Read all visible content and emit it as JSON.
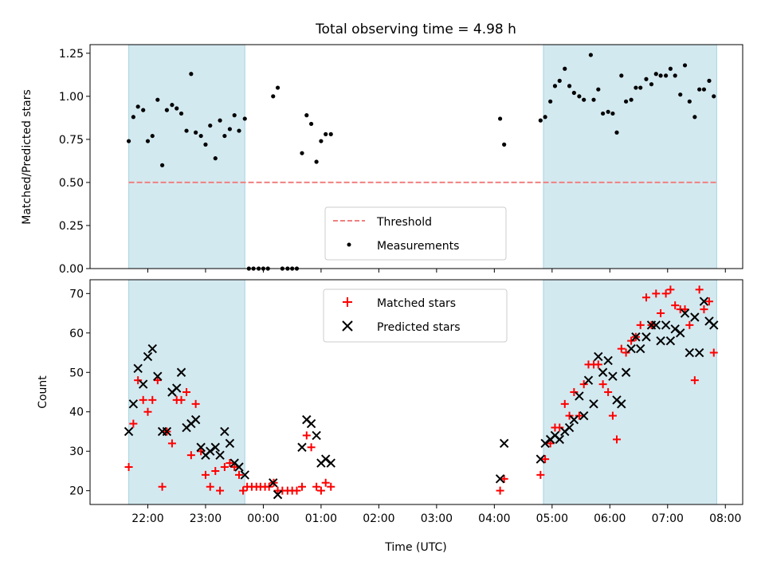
{
  "chart_data": [
    {
      "type": "scatter",
      "title": "Total observing time = 4.98 h",
      "xlabel": "",
      "ylabel": "Matched/Predicted stars",
      "x_unit": "hours (UTC), values beyond 24 continue past midnight",
      "xlim": [
        21.0,
        32.3
      ],
      "ylim": [
        0.0,
        1.3
      ],
      "y_ticks": [
        "0.00",
        "0.25",
        "0.50",
        "0.75",
        "1.00",
        "1.25"
      ],
      "legend_position": "lower-center",
      "shaded_intervals": [
        [
          21.67,
          23.68
        ],
        [
          28.85,
          31.85
        ]
      ],
      "shade_color": "#d3e9f0",
      "threshold": {
        "name": "Threshold",
        "value": 0.5,
        "x_range": [
          21.67,
          31.85
        ],
        "color": "#f08080",
        "style": "dashed"
      },
      "series": [
        {
          "name": "Measurements",
          "marker": "dot",
          "color": "#000000",
          "points": [
            [
              21.67,
              0.74
            ],
            [
              21.75,
              0.88
            ],
            [
              21.83,
              0.94
            ],
            [
              21.92,
              0.92
            ],
            [
              22.0,
              0.74
            ],
            [
              22.08,
              0.77
            ],
            [
              22.17,
              0.98
            ],
            [
              22.25,
              0.6
            ],
            [
              22.33,
              0.92
            ],
            [
              22.42,
              0.95
            ],
            [
              22.5,
              0.93
            ],
            [
              22.58,
              0.9
            ],
            [
              22.67,
              0.8
            ],
            [
              22.75,
              1.13
            ],
            [
              22.83,
              0.79
            ],
            [
              22.92,
              0.77
            ],
            [
              23.0,
              0.72
            ],
            [
              23.08,
              0.83
            ],
            [
              23.17,
              0.64
            ],
            [
              23.25,
              0.86
            ],
            [
              23.33,
              0.77
            ],
            [
              23.42,
              0.81
            ],
            [
              23.5,
              0.89
            ],
            [
              23.58,
              0.8
            ],
            [
              23.68,
              0.87
            ],
            [
              23.75,
              0.0
            ],
            [
              23.83,
              0.0
            ],
            [
              23.92,
              0.0
            ],
            [
              24.0,
              0.0
            ],
            [
              24.08,
              0.0
            ],
            [
              24.17,
              1.0
            ],
            [
              24.25,
              1.05
            ],
            [
              24.33,
              0.0
            ],
            [
              24.42,
              0.0
            ],
            [
              24.5,
              0.0
            ],
            [
              24.58,
              0.0
            ],
            [
              24.67,
              0.67
            ],
            [
              24.75,
              0.89
            ],
            [
              24.83,
              0.84
            ],
            [
              24.92,
              0.62
            ],
            [
              25.0,
              0.74
            ],
            [
              25.08,
              0.78
            ],
            [
              25.17,
              0.78
            ],
            [
              28.1,
              0.87
            ],
            [
              28.17,
              0.72
            ],
            [
              28.8,
              0.86
            ],
            [
              28.88,
              0.88
            ],
            [
              28.97,
              0.97
            ],
            [
              29.05,
              1.06
            ],
            [
              29.13,
              1.09
            ],
            [
              29.22,
              1.16
            ],
            [
              29.3,
              1.06
            ],
            [
              29.38,
              1.02
            ],
            [
              29.47,
              1.0
            ],
            [
              29.55,
              0.98
            ],
            [
              29.67,
              1.24
            ],
            [
              29.72,
              0.98
            ],
            [
              29.8,
              1.04
            ],
            [
              29.88,
              0.9
            ],
            [
              29.97,
              0.91
            ],
            [
              30.05,
              0.9
            ],
            [
              30.12,
              0.79
            ],
            [
              30.2,
              1.12
            ],
            [
              30.28,
              0.97
            ],
            [
              30.37,
              0.98
            ],
            [
              30.45,
              1.05
            ],
            [
              30.53,
              1.05
            ],
            [
              30.63,
              1.1
            ],
            [
              30.72,
              1.07
            ],
            [
              30.8,
              1.13
            ],
            [
              30.88,
              1.12
            ],
            [
              30.97,
              1.12
            ],
            [
              31.05,
              1.16
            ],
            [
              31.13,
              1.12
            ],
            [
              31.22,
              1.01
            ],
            [
              31.3,
              1.18
            ],
            [
              31.38,
              0.97
            ],
            [
              31.47,
              0.88
            ],
            [
              31.55,
              1.04
            ],
            [
              31.63,
              1.04
            ],
            [
              31.72,
              1.09
            ],
            [
              31.8,
              1.0
            ]
          ]
        }
      ]
    },
    {
      "type": "scatter",
      "title": "",
      "xlabel": "Time (UTC)",
      "ylabel": "Count",
      "x_unit": "hours (UTC), values beyond 24 continue past midnight",
      "xlim": [
        21.0,
        32.3
      ],
      "ylim": [
        16.5,
        73.5
      ],
      "x_ticks": [
        {
          "value": 22,
          "label": "22:00"
        },
        {
          "value": 23,
          "label": "23:00"
        },
        {
          "value": 24,
          "label": "00:00"
        },
        {
          "value": 25,
          "label": "01:00"
        },
        {
          "value": 26,
          "label": "02:00"
        },
        {
          "value": 27,
          "label": "03:00"
        },
        {
          "value": 28,
          "label": "04:00"
        },
        {
          "value": 29,
          "label": "05:00"
        },
        {
          "value": 30,
          "label": "06:00"
        },
        {
          "value": 31,
          "label": "07:00"
        },
        {
          "value": 32,
          "label": "08:00"
        }
      ],
      "y_ticks": [
        "20",
        "30",
        "40",
        "50",
        "60",
        "70"
      ],
      "legend_position": "upper-center",
      "shaded_intervals": [
        [
          21.67,
          23.68
        ],
        [
          28.85,
          31.85
        ]
      ],
      "shade_color": "#d3e9f0",
      "series": [
        {
          "name": "Matched stars",
          "marker": "plus",
          "color": "#ff0000",
          "points": [
            [
              21.67,
              26
            ],
            [
              21.75,
              37
            ],
            [
              21.83,
              48
            ],
            [
              21.92,
              43
            ],
            [
              22.0,
              40
            ],
            [
              22.08,
              43
            ],
            [
              22.17,
              48
            ],
            [
              22.25,
              21
            ],
            [
              22.33,
              35
            ],
            [
              22.42,
              32
            ],
            [
              22.5,
              43
            ],
            [
              22.58,
              43
            ],
            [
              22.67,
              45
            ],
            [
              22.75,
              29
            ],
            [
              22.83,
              42
            ],
            [
              22.92,
              30
            ],
            [
              23.0,
              24
            ],
            [
              23.08,
              21
            ],
            [
              23.17,
              25
            ],
            [
              23.25,
              20
            ],
            [
              23.33,
              26
            ],
            [
              23.42,
              27
            ],
            [
              23.5,
              26
            ],
            [
              23.58,
              24
            ],
            [
              23.65,
              20
            ],
            [
              23.72,
              21
            ],
            [
              23.8,
              21
            ],
            [
              23.88,
              21
            ],
            [
              23.95,
              21
            ],
            [
              24.03,
              21
            ],
            [
              24.1,
              21
            ],
            [
              24.18,
              22
            ],
            [
              24.25,
              20
            ],
            [
              24.33,
              20
            ],
            [
              24.42,
              20
            ],
            [
              24.5,
              20
            ],
            [
              24.58,
              20
            ],
            [
              24.67,
              21
            ],
            [
              24.75,
              34
            ],
            [
              24.83,
              31
            ],
            [
              24.92,
              21
            ],
            [
              25.0,
              20
            ],
            [
              25.08,
              22
            ],
            [
              25.17,
              21
            ],
            [
              28.1,
              20
            ],
            [
              28.17,
              23
            ],
            [
              28.8,
              24
            ],
            [
              28.88,
              28
            ],
            [
              28.97,
              32
            ],
            [
              29.05,
              36
            ],
            [
              29.13,
              36
            ],
            [
              29.22,
              42
            ],
            [
              29.3,
              39
            ],
            [
              29.38,
              45
            ],
            [
              29.47,
              39
            ],
            [
              29.55,
              47
            ],
            [
              29.63,
              52
            ],
            [
              29.72,
              52
            ],
            [
              29.8,
              52
            ],
            [
              29.88,
              47
            ],
            [
              29.97,
              45
            ],
            [
              30.05,
              39
            ],
            [
              30.12,
              33
            ],
            [
              30.2,
              56
            ],
            [
              30.28,
              55
            ],
            [
              30.37,
              58
            ],
            [
              30.45,
              59
            ],
            [
              30.53,
              62
            ],
            [
              30.63,
              69
            ],
            [
              30.72,
              62
            ],
            [
              30.8,
              70
            ],
            [
              30.88,
              65
            ],
            [
              30.97,
              70
            ],
            [
              31.05,
              71
            ],
            [
              31.13,
              67
            ],
            [
              31.22,
              66
            ],
            [
              31.3,
              66
            ],
            [
              31.38,
              62
            ],
            [
              31.47,
              48
            ],
            [
              31.55,
              71
            ],
            [
              31.63,
              66
            ],
            [
              31.72,
              68
            ],
            [
              31.8,
              55
            ]
          ]
        },
        {
          "name": "Predicted stars",
          "marker": "x",
          "color": "#000000",
          "points": [
            [
              21.67,
              35
            ],
            [
              21.75,
              42
            ],
            [
              21.83,
              51
            ],
            [
              21.92,
              47
            ],
            [
              22.0,
              54
            ],
            [
              22.08,
              56
            ],
            [
              22.17,
              49
            ],
            [
              22.25,
              35
            ],
            [
              22.33,
              35
            ],
            [
              22.42,
              45
            ],
            [
              22.5,
              46
            ],
            [
              22.58,
              50
            ],
            [
              22.67,
              36
            ],
            [
              22.75,
              37
            ],
            [
              22.83,
              38
            ],
            [
              22.92,
              31
            ],
            [
              23.0,
              29
            ],
            [
              23.08,
              30
            ],
            [
              23.17,
              31
            ],
            [
              23.25,
              29
            ],
            [
              23.33,
              35
            ],
            [
              23.42,
              32
            ],
            [
              23.5,
              27
            ],
            [
              23.58,
              26
            ],
            [
              23.68,
              24
            ],
            [
              24.17,
              22
            ],
            [
              24.25,
              19
            ],
            [
              24.67,
              31
            ],
            [
              24.75,
              38
            ],
            [
              24.83,
              37
            ],
            [
              24.92,
              34
            ],
            [
              25.0,
              27
            ],
            [
              25.08,
              28
            ],
            [
              25.17,
              27
            ],
            [
              28.1,
              23
            ],
            [
              28.17,
              32
            ],
            [
              28.8,
              28
            ],
            [
              28.88,
              32
            ],
            [
              28.97,
              33
            ],
            [
              29.05,
              34
            ],
            [
              29.13,
              33
            ],
            [
              29.22,
              35
            ],
            [
              29.3,
              36
            ],
            [
              29.38,
              38
            ],
            [
              29.47,
              44
            ],
            [
              29.55,
              39
            ],
            [
              29.63,
              48
            ],
            [
              29.72,
              42
            ],
            [
              29.8,
              54
            ],
            [
              29.88,
              50
            ],
            [
              29.97,
              53
            ],
            [
              30.05,
              49
            ],
            [
              30.12,
              43
            ],
            [
              30.2,
              42
            ],
            [
              30.28,
              50
            ],
            [
              30.37,
              56
            ],
            [
              30.45,
              59
            ],
            [
              30.53,
              56
            ],
            [
              30.63,
              59
            ],
            [
              30.72,
              62
            ],
            [
              30.8,
              62
            ],
            [
              30.88,
              58
            ],
            [
              30.97,
              62
            ],
            [
              31.05,
              58
            ],
            [
              31.13,
              61
            ],
            [
              31.22,
              60
            ],
            [
              31.3,
              65
            ],
            [
              31.38,
              55
            ],
            [
              31.47,
              64
            ],
            [
              31.55,
              55
            ],
            [
              31.63,
              68
            ],
            [
              31.72,
              63
            ],
            [
              31.8,
              62
            ]
          ]
        }
      ]
    }
  ]
}
